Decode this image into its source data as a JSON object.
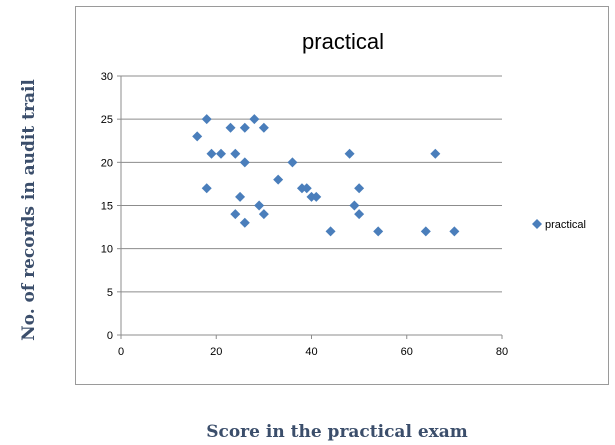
{
  "chart_data": {
    "type": "scatter",
    "title": "practical",
    "xlabel": "Score in the practical exam",
    "ylabel": "No. of records in audit trail",
    "xlim": [
      0,
      80
    ],
    "ylim": [
      0,
      30
    ],
    "x_ticks": [
      "0",
      "20",
      "40",
      "60",
      "80"
    ],
    "y_ticks": [
      "0",
      "5",
      "10",
      "15",
      "20",
      "25",
      "30"
    ],
    "grid": "horizontal",
    "legend_position": "right",
    "marker": "diamond",
    "color": "#4a7ebb",
    "series": [
      {
        "name": "practical",
        "points": [
          [
            16,
            23
          ],
          [
            18,
            25
          ],
          [
            18,
            17
          ],
          [
            19,
            21
          ],
          [
            21,
            21
          ],
          [
            23,
            24
          ],
          [
            24,
            21
          ],
          [
            24,
            14
          ],
          [
            25,
            16
          ],
          [
            26,
            24
          ],
          [
            26,
            20
          ],
          [
            26,
            13
          ],
          [
            28,
            25
          ],
          [
            29,
            15
          ],
          [
            30,
            24
          ],
          [
            30,
            14
          ],
          [
            33,
            18
          ],
          [
            36,
            20
          ],
          [
            38,
            17
          ],
          [
            39,
            17
          ],
          [
            40,
            16
          ],
          [
            41,
            16
          ],
          [
            44,
            12
          ],
          [
            48,
            21
          ],
          [
            49,
            15
          ],
          [
            50,
            17
          ],
          [
            50,
            14
          ],
          [
            54,
            12
          ],
          [
            64,
            12
          ],
          [
            66,
            21
          ],
          [
            70,
            12
          ]
        ]
      }
    ]
  }
}
